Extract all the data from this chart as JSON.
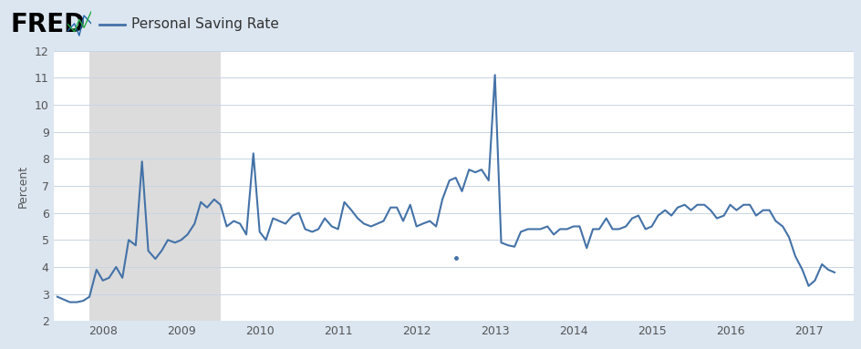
{
  "title": "Personal Saving Rate",
  "ylabel": "Percent",
  "line_color": "#4472a7",
  "bg_outer": "#dce6f1",
  "bg_plot": "#ffffff",
  "bg_recession": "#dcdcdc",
  "grid_color": "#c8d4e3",
  "ylim": [
    2,
    12
  ],
  "yticks": [
    2,
    3,
    4,
    5,
    6,
    7,
    8,
    9,
    10,
    11,
    12
  ],
  "recession_start": 2007.83,
  "recession_end": 2009.5,
  "xmin": 2007.37,
  "xmax": 2017.58,
  "xtick_years": [
    2008,
    2009,
    2010,
    2011,
    2012,
    2013,
    2014,
    2015,
    2016,
    2017
  ],
  "data": {
    "dates": [
      2007.42,
      2007.5,
      2007.58,
      2007.67,
      2007.75,
      2007.83,
      2007.92,
      2008.0,
      2008.08,
      2008.17,
      2008.25,
      2008.33,
      2008.42,
      2008.5,
      2008.58,
      2008.67,
      2008.75,
      2008.83,
      2008.92,
      2009.0,
      2009.08,
      2009.17,
      2009.25,
      2009.33,
      2009.42,
      2009.5,
      2009.58,
      2009.67,
      2009.75,
      2009.83,
      2009.92,
      2010.0,
      2010.08,
      2010.17,
      2010.25,
      2010.33,
      2010.42,
      2010.5,
      2010.58,
      2010.67,
      2010.75,
      2010.83,
      2010.92,
      2011.0,
      2011.08,
      2011.17,
      2011.25,
      2011.33,
      2011.42,
      2011.5,
      2011.58,
      2011.67,
      2011.75,
      2011.83,
      2011.92,
      2012.0,
      2012.08,
      2012.17,
      2012.25,
      2012.33,
      2012.42,
      2012.5,
      2012.58,
      2012.67,
      2012.75,
      2012.83,
      2012.92,
      2013.0,
      2013.08,
      2013.17,
      2013.25,
      2013.33,
      2013.42,
      2013.5,
      2013.58,
      2013.67,
      2013.75,
      2013.83,
      2013.92,
      2014.0,
      2014.08,
      2014.17,
      2014.25,
      2014.33,
      2014.42,
      2014.5,
      2014.58,
      2014.67,
      2014.75,
      2014.83,
      2014.92,
      2015.0,
      2015.08,
      2015.17,
      2015.25,
      2015.33,
      2015.42,
      2015.5,
      2015.58,
      2015.67,
      2015.75,
      2015.83,
      2015.92,
      2016.0,
      2016.08,
      2016.17,
      2016.25,
      2016.33,
      2016.42,
      2016.5,
      2016.58,
      2016.67,
      2016.75,
      2016.83,
      2016.92,
      2017.0,
      2017.08,
      2017.17,
      2017.25,
      2017.33
    ],
    "values": [
      2.9,
      2.8,
      2.7,
      2.7,
      2.75,
      2.9,
      3.9,
      3.5,
      3.6,
      4.0,
      3.6,
      5.0,
      4.8,
      7.9,
      4.6,
      4.3,
      4.6,
      5.0,
      4.9,
      5.0,
      5.2,
      5.6,
      6.4,
      6.2,
      6.5,
      6.3,
      5.5,
      5.7,
      5.6,
      5.2,
      8.2,
      5.3,
      5.0,
      5.8,
      5.7,
      5.6,
      5.9,
      6.0,
      5.4,
      5.3,
      5.4,
      5.8,
      5.5,
      5.4,
      6.4,
      6.1,
      5.8,
      5.6,
      5.5,
      5.6,
      5.7,
      6.2,
      6.2,
      5.7,
      6.3,
      5.5,
      5.6,
      5.7,
      5.5,
      6.5,
      7.2,
      7.3,
      6.8,
      7.6,
      7.5,
      7.6,
      7.2,
      11.1,
      4.9,
      4.8,
      4.75,
      5.3,
      5.4,
      5.4,
      5.4,
      5.5,
      5.2,
      5.4,
      5.4,
      5.5,
      5.5,
      4.7,
      5.4,
      5.4,
      5.8,
      5.4,
      5.4,
      5.5,
      5.8,
      5.9,
      5.4,
      5.5,
      5.9,
      6.1,
      5.9,
      6.2,
      6.3,
      6.1,
      6.3,
      6.3,
      6.1,
      5.8,
      5.9,
      6.3,
      6.1,
      6.3,
      6.3,
      5.9,
      6.1,
      6.1,
      5.7,
      5.5,
      5.1,
      4.4,
      3.9,
      3.3,
      3.5,
      4.1,
      3.9,
      3.8
    ]
  },
  "dot_x": 2012.5,
  "dot_y": 4.35,
  "legend_label": "Personal Saving Rate",
  "line_width": 1.5,
  "fred_fontsize": 20,
  "legend_fontsize": 11,
  "axis_fontsize": 9,
  "ylabel_fontsize": 9
}
